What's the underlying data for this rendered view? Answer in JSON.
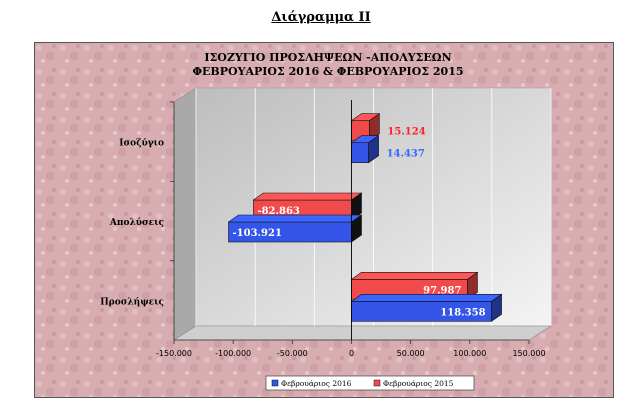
{
  "page": {
    "heading": "Διάγραμμα ΙΙ"
  },
  "colors": {
    "series_2016": "#3355e8",
    "series_2015": "#f04a4a",
    "background": "#d9b3b3",
    "label_2016": "#3366ff",
    "label_2015": "#ff2222"
  },
  "chart_data": {
    "type": "bar",
    "orientation": "horizontal",
    "title": [
      "ΙΣΟΖΥΓΙΟ ΠΡΟΣΛΗΨΕΩΝ -ΑΠΟΛΥΣΕΩΝ",
      "ΦΕΒΡΟΥΑΡΙΟΣ 2016  &  ΦΕΒΡΟΥΑΡΙΟΣ 2015"
    ],
    "categories": [
      "Ισοζύγιο",
      "Απολύσεις",
      "Προσλήψεις"
    ],
    "series": [
      {
        "name": "Φεβρουάριος 2016",
        "values": [
          14437,
          -103921,
          118358
        ],
        "labels": [
          "14.437",
          "-103.921",
          "118.358"
        ]
      },
      {
        "name": "Φεβρουάριος 2015",
        "values": [
          15124,
          -82863,
          97987
        ],
        "labels": [
          "15.124",
          "-82.863",
          "97.987"
        ]
      }
    ],
    "xlim": [
      -150000,
      150000
    ],
    "x_ticks": [
      -150000,
      -100000,
      -50000,
      0,
      50000,
      100000,
      150000
    ],
    "x_tick_labels": [
      "-150.000",
      "-100.000",
      "-50.000",
      "0",
      "50.000",
      "100.000",
      "150.000"
    ],
    "grid": true,
    "legend_position": "bottom",
    "three_d": true
  }
}
